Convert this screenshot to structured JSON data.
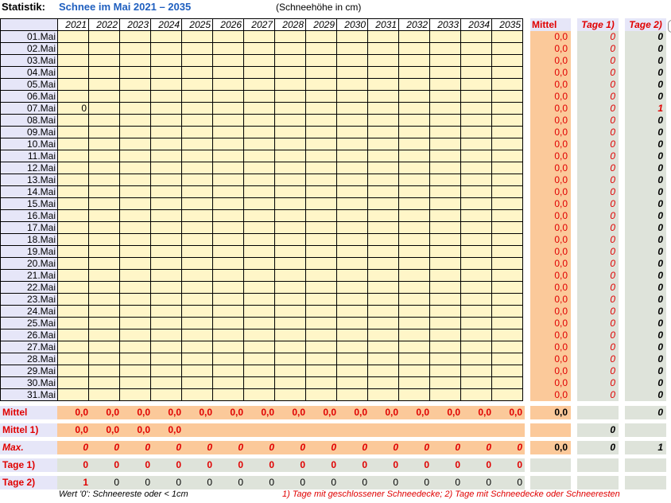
{
  "header": {
    "label": "Statistik:",
    "title": "Schnee im Mai 2021 – 2035",
    "unit": "(Schneehöhe in cm)"
  },
  "years": [
    "2021",
    "2022",
    "2023",
    "2024",
    "2025",
    "2026",
    "2027",
    "2028",
    "2029",
    "2030",
    "2031",
    "2032",
    "2033",
    "2034",
    "2035"
  ],
  "days": [
    "01.Mai",
    "02.Mai",
    "03.Mai",
    "04.Mai",
    "05.Mai",
    "06.Mai",
    "07.Mai",
    "08.Mai",
    "09.Mai",
    "10.Mai",
    "11.Mai",
    "12.Mai",
    "13.Mai",
    "14.Mai",
    "15.Mai",
    "16.Mai",
    "17.Mai",
    "18.Mai",
    "19.Mai",
    "20.Mai",
    "21.Mai",
    "22.Mai",
    "23.Mai",
    "24.Mai",
    "25.Mai",
    "26.Mai",
    "27.Mai",
    "28.Mai",
    "29.Mai",
    "30.Mai",
    "31.Mai"
  ],
  "cell_values": {
    "07.Mai_2021": "0"
  },
  "side_headers": {
    "mittel": "Mittel",
    "tage1": "Tage 1)",
    "tage2": "Tage 2)"
  },
  "daily_mittel": [
    "0,0",
    "0,0",
    "0,0",
    "0,0",
    "0,0",
    "0,0",
    "0,0",
    "0,0",
    "0,0",
    "0,0",
    "0,0",
    "0,0",
    "0,0",
    "0,0",
    "0,0",
    "0,0",
    "0,0",
    "0,0",
    "0,0",
    "0,0",
    "0,0",
    "0,0",
    "0,0",
    "0,0",
    "0,0",
    "0,0",
    "0,0",
    "0,0",
    "0,0",
    "0,0",
    "0,0"
  ],
  "daily_tage1": [
    "0",
    "0",
    "0",
    "0",
    "0",
    "0",
    "0",
    "0",
    "0",
    "0",
    "0",
    "0",
    "0",
    "0",
    "0",
    "0",
    "0",
    "0",
    "0",
    "0",
    "0",
    "0",
    "0",
    "0",
    "0",
    "0",
    "0",
    "0",
    "0",
    "0",
    "0"
  ],
  "daily_tage2": [
    "0",
    "0",
    "0",
    "0",
    "0",
    "0",
    "1",
    "0",
    "0",
    "0",
    "0",
    "0",
    "0",
    "0",
    "0",
    "0",
    "0",
    "0",
    "0",
    "0",
    "0",
    "0",
    "0",
    "0",
    "0",
    "0",
    "0",
    "0",
    "0",
    "0",
    "0"
  ],
  "summary": {
    "mittel": {
      "label": "Mittel",
      "values": [
        "0,0",
        "0,0",
        "0,0",
        "0,0",
        "0,0",
        "0,0",
        "0,0",
        "0,0",
        "0,0",
        "0,0",
        "0,0",
        "0,0",
        "0,0",
        "0,0",
        "0,0"
      ],
      "side_mittel": "0,0",
      "side_tage1": "",
      "side_tage2": "0"
    },
    "mittel1": {
      "label": "Mittel 1)",
      "values": [
        "0,0",
        "0,0",
        "0,0",
        "0,0"
      ],
      "side_mittel": "",
      "side_tage1": "0",
      "side_tage2": ""
    },
    "max": {
      "label": "Max.",
      "values": [
        "0",
        "0",
        "0",
        "0",
        "0",
        "0",
        "0",
        "0",
        "0",
        "0",
        "0",
        "0",
        "0",
        "0",
        "0"
      ],
      "side_mittel": "0,0",
      "side_tage1": "0",
      "side_tage2": "1"
    },
    "tage1": {
      "label": "Tage 1)",
      "values": [
        "0",
        "0",
        "0",
        "0",
        "0",
        "0",
        "0",
        "0",
        "0",
        "0",
        "0",
        "0",
        "0",
        "0",
        "0"
      ]
    },
    "tage2": {
      "label": "Tage 2)",
      "values": [
        "1",
        "0",
        "0",
        "0",
        "0",
        "0",
        "0",
        "0",
        "0",
        "0",
        "0",
        "0",
        "0",
        "0",
        "0"
      ]
    }
  },
  "footer": {
    "left": "Wert '0': Schneereste oder < 1cm",
    "right": "1) Tage mit geschlossener Schneedecke;  2) Tage mit Schneedecke oder Schneeresten"
  },
  "colors": {
    "title_blue": "#1f5fbf",
    "accent_red": "#e00000",
    "cell_yellow": "#fff6c8",
    "header_lavender": "#e6e6f8",
    "mittel_orange": "#fbc99a",
    "tage_gray": "#dee3da"
  }
}
